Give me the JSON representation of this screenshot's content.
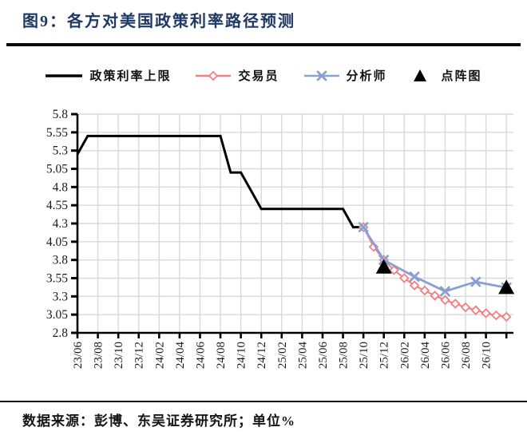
{
  "title": "图9：各方对美国政策利率路径预测",
  "source_note": "数据来源：彭博、东吴证券研究所；单位%",
  "colors": {
    "title_navy": "#1F3864",
    "policy_black": "#000000",
    "trader_pink": "#F08080",
    "analyst_blue": "#8AA0D2",
    "grid_gray": "#D9D9D9",
    "tick_text": "#1a1a1a"
  },
  "legend": [
    {
      "label": "政策利率上限",
      "type": "line",
      "color": "#000000"
    },
    {
      "label": "交易员",
      "type": "line-diamond",
      "color": "#F08080"
    },
    {
      "label": "分析师",
      "type": "line-x",
      "color": "#8AA0D2"
    },
    {
      "label": "点阵图",
      "type": "triangle",
      "color": "#000000"
    }
  ],
  "chart_data": {
    "type": "line",
    "title": "",
    "xlabel": "",
    "ylabel": "",
    "unit": "%",
    "ylim": [
      2.8,
      5.8
    ],
    "ytick_step": 0.25,
    "yticks": [
      2.8,
      3.05,
      3.3,
      3.55,
      3.8,
      4.05,
      4.3,
      4.55,
      4.8,
      5.05,
      5.3,
      5.55,
      5.8
    ],
    "xticks": [
      "23/06",
      "23/08",
      "23/10",
      "23/12",
      "24/02",
      "24/04",
      "24/06",
      "24/08",
      "24/10",
      "24/12",
      "25/02",
      "25/04",
      "25/06",
      "25/08",
      "25/10",
      "25/12",
      "26/02",
      "26/04",
      "26/06",
      "26/08",
      "26/10"
    ],
    "x_axis_start": "23/06",
    "x_axis_end": "26/12",
    "grid": true,
    "legend_position": "top",
    "series": [
      {
        "name": "政策利率上限",
        "color": "#000000",
        "marker": "none",
        "line_width": 3,
        "x": [
          "23/06",
          "23/07",
          "23/08",
          "23/09",
          "23/10",
          "23/11",
          "23/12",
          "24/01",
          "24/02",
          "24/03",
          "24/04",
          "24/05",
          "24/06",
          "24/07",
          "24/08",
          "24/09",
          "24/10",
          "24/11",
          "24/12",
          "25/01",
          "25/02",
          "25/03",
          "25/04",
          "25/05",
          "25/06",
          "25/07",
          "25/08",
          "25/09",
          "25/10"
        ],
        "values": [
          5.25,
          5.5,
          5.5,
          5.5,
          5.5,
          5.5,
          5.5,
          5.5,
          5.5,
          5.5,
          5.5,
          5.5,
          5.5,
          5.5,
          5.5,
          5.0,
          5.0,
          4.75,
          4.5,
          4.5,
          4.5,
          4.5,
          4.5,
          4.5,
          4.5,
          4.5,
          4.5,
          4.25,
          4.25
        ]
      },
      {
        "name": "交易员",
        "color": "#F08080",
        "marker": "diamond",
        "line_width": 2,
        "x": [
          "25/10",
          "25/11",
          "25/12",
          "26/01",
          "26/02",
          "26/03",
          "26/04",
          "26/05",
          "26/06",
          "26/07",
          "26/08",
          "26/09",
          "26/10",
          "26/11",
          "26/12"
        ],
        "values": [
          4.25,
          3.98,
          3.8,
          3.66,
          3.55,
          3.45,
          3.38,
          3.31,
          3.25,
          3.2,
          3.15,
          3.11,
          3.07,
          3.04,
          3.02
        ]
      },
      {
        "name": "分析师",
        "color": "#8AA0D2",
        "marker": "x",
        "line_width": 2.8,
        "x": [
          "25/10",
          "25/12",
          "26/03",
          "26/06",
          "26/09",
          "26/12"
        ],
        "values": [
          4.25,
          3.8,
          3.57,
          3.37,
          3.5,
          3.42
        ]
      },
      {
        "name": "点阵图",
        "color": "#000000",
        "marker": "triangle",
        "line_width": 0,
        "x": [
          "25/12",
          "26/12"
        ],
        "values": [
          3.7,
          3.42
        ]
      }
    ]
  }
}
